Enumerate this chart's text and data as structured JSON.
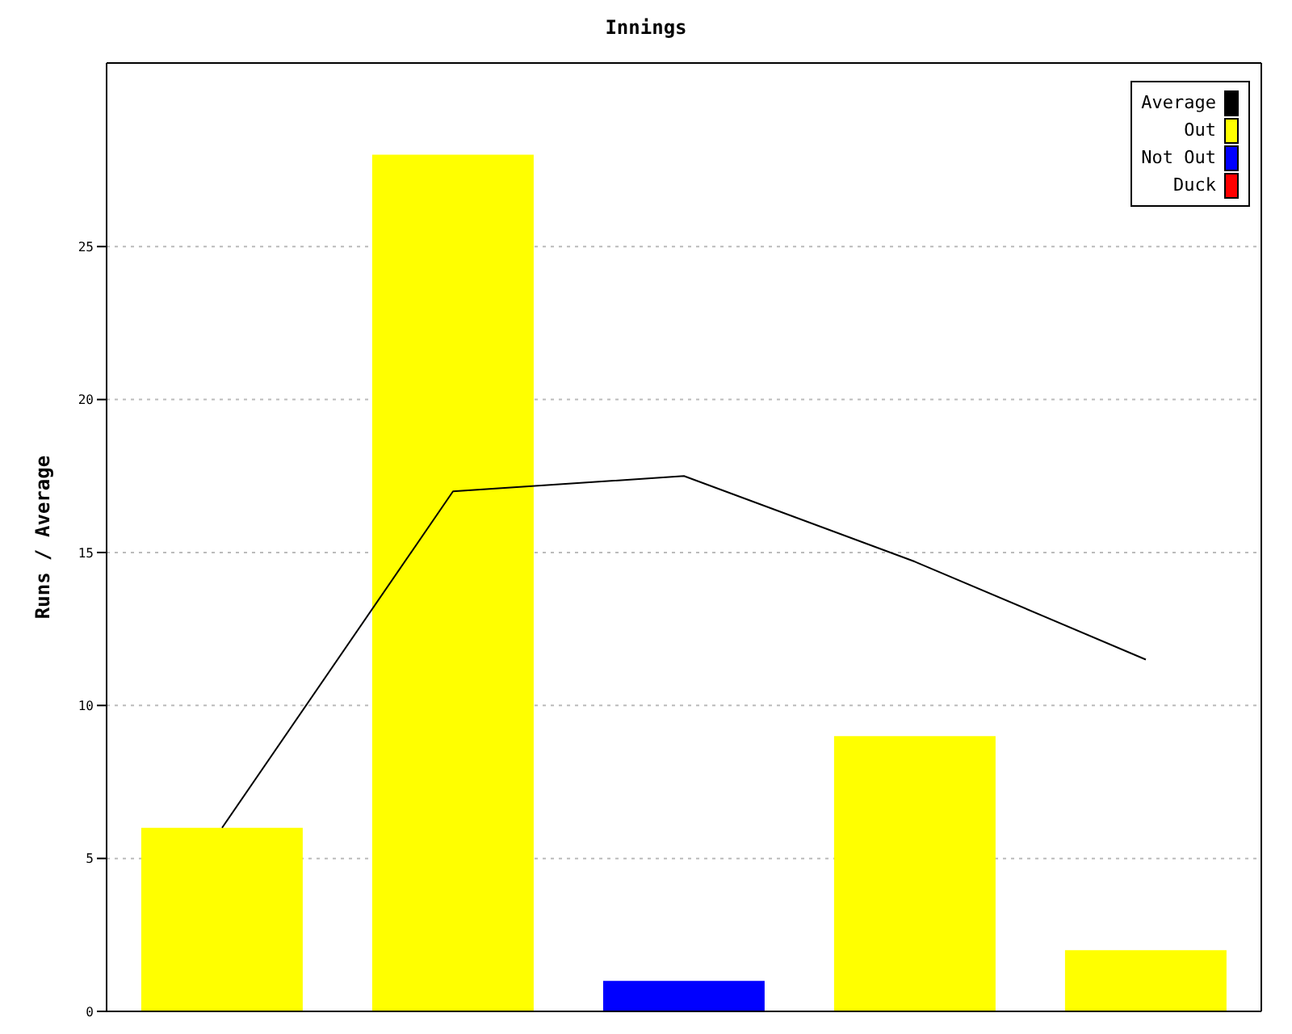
{
  "chart_data": {
    "type": "bar",
    "title": "Innings",
    "ylabel": "Runs / Average",
    "categories": [
      null,
      null,
      null,
      null,
      null
    ],
    "stacked": true,
    "series": [
      {
        "name": "Average",
        "type": "line",
        "color": "#000000",
        "values": [
          6,
          17,
          17.5,
          14.7,
          11.5
        ]
      },
      {
        "name": "Out",
        "color": "#ffff00",
        "values": [
          6,
          28,
          null,
          9,
          2
        ]
      },
      {
        "name": "Not Out",
        "color": "#0000ff",
        "values": [
          null,
          null,
          1,
          null,
          null
        ]
      },
      {
        "name": "Duck",
        "color": "#ff0000",
        "values": [
          null,
          null,
          null,
          null,
          null
        ]
      }
    ],
    "ylim": [
      0,
      31
    ],
    "yticks": [
      0,
      5,
      10,
      15,
      20,
      25
    ],
    "grid": "y",
    "legend": "top right",
    "tick_labels": "y",
    "marker": "none",
    "line_style": "solid"
  }
}
